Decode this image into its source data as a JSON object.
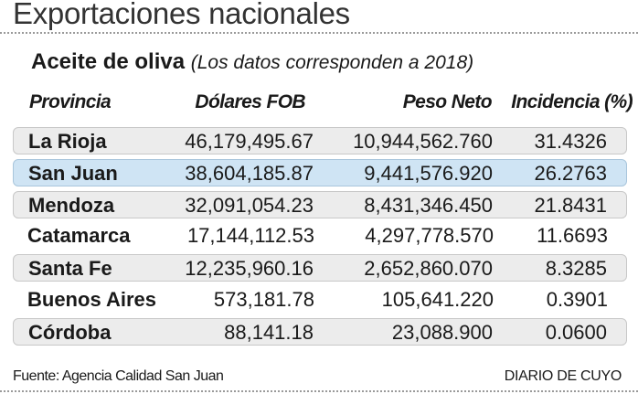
{
  "header": {
    "title": "Exportaciones nacionales",
    "product": "Aceite de oliva",
    "note": "(Los datos corresponden a 2018)"
  },
  "chart_data": {
    "type": "table",
    "columns": [
      "Provincia",
      "Dólares FOB",
      "Peso Neto",
      "Incidencia (%)"
    ],
    "rows": [
      {
        "provincia": "La Rioja",
        "fob": "46,179,495.67",
        "peso": "10,944,562.760",
        "incidencia": "31.4326",
        "style": "shaded"
      },
      {
        "provincia": "San Juan",
        "fob": "38,604,185.87",
        "peso": "9,441,576.920",
        "incidencia": "26.2763",
        "style": "highlight"
      },
      {
        "provincia": "Mendoza",
        "fob": "32,091,054.23",
        "peso": "8,431,346.450",
        "incidencia": "21.8431",
        "style": "shaded"
      },
      {
        "provincia": "Catamarca",
        "fob": "17,144,112.53",
        "peso": "4,297,778.570",
        "incidencia": "11.6693",
        "style": "plain"
      },
      {
        "provincia": "Santa Fe",
        "fob": "12,235,960.16",
        "peso": "2,652,860.070",
        "incidencia": "8.3285",
        "style": "shaded"
      },
      {
        "provincia": "Buenos Aires",
        "fob": "573,181.78",
        "peso": "105,641.220",
        "incidencia": "0.3901",
        "style": "plain"
      },
      {
        "provincia": "Córdoba",
        "fob": "88,141.18",
        "peso": "23,088.900",
        "incidencia": "0.0600",
        "style": "shaded"
      }
    ],
    "colors": {
      "shaded": "#ececec",
      "highlight": "#cfe4f4"
    }
  },
  "footer": {
    "source": "Fuente: Agencia Calidad San Juan",
    "brand": "DIARIO DE CUYO"
  }
}
